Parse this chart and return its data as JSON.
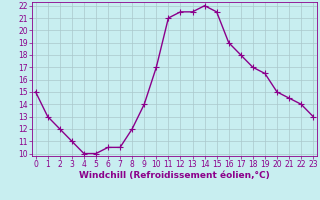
{
  "x": [
    0,
    1,
    2,
    3,
    4,
    5,
    6,
    7,
    8,
    9,
    10,
    11,
    12,
    13,
    14,
    15,
    16,
    17,
    18,
    19,
    20,
    21,
    22,
    23
  ],
  "y": [
    15,
    13,
    12,
    11,
    10,
    10,
    10.5,
    10.5,
    12,
    14,
    17,
    21,
    21.5,
    21.5,
    22,
    21.5,
    19,
    18,
    17,
    16.5,
    15,
    14.5,
    14,
    13
  ],
  "line_color": "#8B008B",
  "marker_color": "#8B008B",
  "bg_color": "#c8eef0",
  "grid_color": "#aac8cc",
  "xlabel": "Windchill (Refroidissement éolien,°C)",
  "xlabel_color": "#8B008B",
  "xtick_color": "#8B008B",
  "ytick_color": "#8B008B",
  "spine_color": "#8B008B",
  "ylim": [
    10,
    22
  ],
  "xlim": [
    0,
    23
  ],
  "yticks": [
    10,
    11,
    12,
    13,
    14,
    15,
    16,
    17,
    18,
    19,
    20,
    21,
    22
  ],
  "xticks": [
    0,
    1,
    2,
    3,
    4,
    5,
    6,
    7,
    8,
    9,
    10,
    11,
    12,
    13,
    14,
    15,
    16,
    17,
    18,
    19,
    20,
    21,
    22,
    23
  ],
  "marker_size": 2.5,
  "line_width": 1.0,
  "xlabel_fontsize": 6.5,
  "tick_fontsize": 5.5
}
